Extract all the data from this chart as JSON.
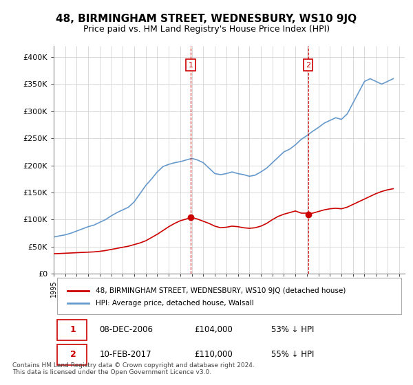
{
  "title": "48, BIRMINGHAM STREET, WEDNESBURY, WS10 9JQ",
  "subtitle": "Price paid vs. HM Land Registry's House Price Index (HPI)",
  "ylabel_ticks": [
    0,
    50000,
    100000,
    150000,
    200000,
    250000,
    300000,
    350000,
    400000
  ],
  "ylabel_labels": [
    "£0",
    "£50K",
    "£100K",
    "£150K",
    "£200K",
    "£250K",
    "£300K",
    "£350K",
    "£400K"
  ],
  "ylim": [
    0,
    420000
  ],
  "xlim_start": 1995.0,
  "xlim_end": 2025.5,
  "hpi_color": "#6699cc",
  "price_color": "#cc0000",
  "transaction_color": "#cc0000",
  "transaction1_x": 2006.92,
  "transaction1_y": 104000,
  "transaction1_label": "1",
  "transaction2_x": 2017.1,
  "transaction2_y": 110000,
  "transaction2_label": "2",
  "legend_property": "48, BIRMINGHAM STREET, WEDNESBURY, WS10 9JQ (detached house)",
  "legend_hpi": "HPI: Average price, detached house, Walsall",
  "table_row1": [
    "1",
    "08-DEC-2006",
    "£104,000",
    "53% ↓ HPI"
  ],
  "table_row2": [
    "2",
    "10-FEB-2017",
    "£110,000",
    "55% ↓ HPI"
  ],
  "footnote": "Contains HM Land Registry data © Crown copyright and database right 2024.\nThis data is licensed under the Open Government Licence v3.0.",
  "bg_color": "#ffffff",
  "grid_color": "#cccccc",
  "hpi_years": [
    1995,
    1995.5,
    1996,
    1996.5,
    1997,
    1997.5,
    1998,
    1998.5,
    1999,
    1999.5,
    2000,
    2000.5,
    2001,
    2001.5,
    2002,
    2002.5,
    2003,
    2003.5,
    2004,
    2004.5,
    2005,
    2005.5,
    2006,
    2006.5,
    2007,
    2007.5,
    2008,
    2008.5,
    2009,
    2009.5,
    2010,
    2010.5,
    2011,
    2011.5,
    2012,
    2012.5,
    2013,
    2013.5,
    2014,
    2014.5,
    2015,
    2015.5,
    2016,
    2016.5,
    2017,
    2017.5,
    2018,
    2018.5,
    2019,
    2019.5,
    2020,
    2020.5,
    2021,
    2021.5,
    2022,
    2022.5,
    2023,
    2023.5,
    2024,
    2024.5
  ],
  "hpi_values": [
    68000,
    70000,
    72000,
    75000,
    79000,
    83000,
    87000,
    90000,
    95000,
    100000,
    107000,
    113000,
    118000,
    123000,
    133000,
    148000,
    163000,
    175000,
    188000,
    198000,
    202000,
    205000,
    207000,
    210000,
    213000,
    210000,
    205000,
    195000,
    185000,
    183000,
    185000,
    188000,
    185000,
    183000,
    180000,
    182000,
    188000,
    195000,
    205000,
    215000,
    225000,
    230000,
    238000,
    248000,
    255000,
    263000,
    270000,
    278000,
    283000,
    288000,
    285000,
    295000,
    315000,
    335000,
    355000,
    360000,
    355000,
    350000,
    355000,
    360000
  ],
  "price_years": [
    1995,
    1995.5,
    1996,
    1996.5,
    1997,
    1997.5,
    1998,
    1998.5,
    1999,
    1999.5,
    2000,
    2000.5,
    2001,
    2001.5,
    2002,
    2002.5,
    2003,
    2003.5,
    2004,
    2004.5,
    2005,
    2005.5,
    2006,
    2006.5,
    2006.92,
    2007,
    2007.5,
    2008,
    2008.5,
    2009,
    2009.5,
    2010,
    2010.5,
    2011,
    2011.5,
    2012,
    2012.5,
    2013,
    2013.5,
    2014,
    2014.5,
    2015,
    2015.5,
    2016,
    2016.5,
    2017,
    2017.1,
    2017.5,
    2018,
    2018.5,
    2019,
    2019.5,
    2020,
    2020.5,
    2021,
    2021.5,
    2022,
    2022.5,
    2023,
    2023.5,
    2024,
    2024.5
  ],
  "price_values": [
    37000,
    37500,
    38000,
    38500,
    39000,
    39500,
    40000,
    40500,
    41500,
    43000,
    45000,
    47000,
    49000,
    51000,
    54000,
    57000,
    61000,
    67000,
    73000,
    80000,
    87000,
    93000,
    98000,
    101000,
    104000,
    104000,
    101000,
    97000,
    93000,
    88000,
    85000,
    86000,
    88000,
    87000,
    85000,
    84000,
    85000,
    88000,
    93000,
    100000,
    106000,
    110000,
    113000,
    116000,
    112000,
    112000,
    110000,
    112000,
    115000,
    118000,
    120000,
    121000,
    120000,
    123000,
    128000,
    133000,
    138000,
    143000,
    148000,
    152000,
    155000,
    157000
  ]
}
